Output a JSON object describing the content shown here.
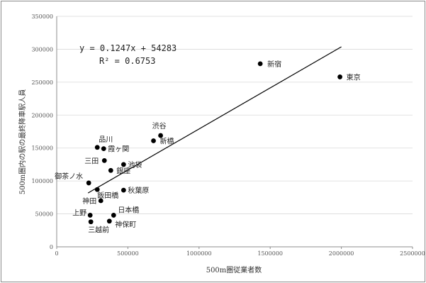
{
  "chart_data": {
    "type": "scatter",
    "xlabel": "500m圏従業者数",
    "ylabel": "500m圏内の駅の最終降車駅人員",
    "xlim": [
      0,
      2500000
    ],
    "ylim": [
      0,
      350000
    ],
    "x_ticks": [
      "0",
      "500000",
      "1000000",
      "1500000",
      "2000000",
      "2500000"
    ],
    "y_ticks": [
      "0",
      "50000",
      "100000",
      "150000",
      "200000",
      "250000",
      "300000",
      "350000"
    ],
    "grid": "horizontal",
    "points": [
      {
        "label": "新宿",
        "x": 1430000,
        "y": 278000
      },
      {
        "label": "東京",
        "x": 1990000,
        "y": 258000
      },
      {
        "label": "渋谷",
        "x": 730000,
        "y": 169000
      },
      {
        "label": "新橋",
        "x": 680000,
        "y": 161000
      },
      {
        "label": "品川",
        "x": 285000,
        "y": 151000
      },
      {
        "label": "霞ヶ関",
        "x": 330000,
        "y": 149000
      },
      {
        "label": "三田",
        "x": 335000,
        "y": 131000
      },
      {
        "label": "池袋",
        "x": 470000,
        "y": 125000
      },
      {
        "label": "銀座",
        "x": 380000,
        "y": 116000
      },
      {
        "label": "御茶ノ水",
        "x": 225000,
        "y": 97000
      },
      {
        "label": "飯田橋",
        "x": 285000,
        "y": 87000
      },
      {
        "label": "秋葉原",
        "x": 470000,
        "y": 86000
      },
      {
        "label": "神田",
        "x": 310000,
        "y": 70000
      },
      {
        "label": "上野",
        "x": 235000,
        "y": 48000
      },
      {
        "label": "日本橋",
        "x": 400000,
        "y": 48000
      },
      {
        "label": "三越前",
        "x": 240000,
        "y": 38000
      },
      {
        "label": "神保町",
        "x": 370000,
        "y": 39000
      }
    ],
    "trendline": {
      "slope": 0.1247,
      "intercept": 54283,
      "x_range": [
        220000,
        2000000
      ],
      "equation": "y = 0.1247x + 54283",
      "r_squared": "R² = 0.6753"
    }
  }
}
